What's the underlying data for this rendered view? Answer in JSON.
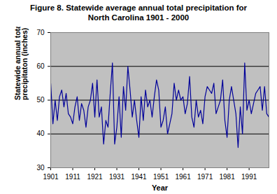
{
  "chart_data": {
    "type": "line",
    "title": "Figure 8. Statewide average annual total precipitation for North Carolina 1901 - 2000",
    "xlabel": "Year",
    "ylabel": "Statewide annual total precipitaton (inches)",
    "x": [
      1901,
      1902,
      1903,
      1904,
      1905,
      1906,
      1907,
      1908,
      1909,
      1910,
      1911,
      1912,
      1913,
      1914,
      1915,
      1916,
      1917,
      1918,
      1919,
      1920,
      1921,
      1922,
      1923,
      1924,
      1925,
      1926,
      1927,
      1928,
      1929,
      1930,
      1931,
      1932,
      1933,
      1934,
      1935,
      1936,
      1937,
      1938,
      1939,
      1940,
      1941,
      1942,
      1943,
      1944,
      1945,
      1946,
      1947,
      1948,
      1949,
      1950,
      1951,
      1952,
      1953,
      1954,
      1955,
      1956,
      1957,
      1958,
      1959,
      1960,
      1961,
      1962,
      1963,
      1964,
      1965,
      1966,
      1967,
      1968,
      1969,
      1970,
      1971,
      1972,
      1973,
      1974,
      1975,
      1976,
      1977,
      1978,
      1979,
      1980,
      1981,
      1982,
      1983,
      1984,
      1985,
      1986,
      1987,
      1988,
      1989,
      1990,
      1991,
      1992,
      1993,
      1994,
      1995,
      1996,
      1997,
      1998,
      1999,
      2000
    ],
    "values": [
      55,
      43,
      50,
      44,
      51,
      53,
      48,
      52,
      46,
      45,
      43,
      48,
      51,
      44,
      49,
      47,
      42,
      48,
      50,
      55,
      45,
      56,
      45,
      48,
      37,
      44,
      42,
      52,
      61,
      37,
      42,
      51,
      39,
      54,
      47,
      60,
      53,
      45,
      50,
      44,
      39,
      51,
      44,
      53,
      48,
      50,
      45,
      51,
      56,
      53,
      42,
      44,
      48,
      40,
      43,
      46,
      55,
      50,
      53,
      50,
      51,
      46,
      49,
      57,
      45,
      42,
      50,
      45,
      47,
      43,
      51,
      54,
      53,
      52,
      55,
      46,
      48,
      50,
      56,
      44,
      39,
      50,
      54,
      50,
      46,
      36,
      48,
      40,
      61,
      47,
      50,
      46,
      49,
      52,
      53,
      54,
      47,
      54,
      46,
      45
    ],
    "color": "#000099",
    "xlim": [
      1901,
      2000
    ],
    "xticks": [
      1901,
      1911,
      1921,
      1931,
      1941,
      1951,
      1961,
      1971,
      1981,
      1991
    ],
    "ylim": [
      30,
      70
    ],
    "yticks": [
      30,
      40,
      50,
      60,
      70
    ],
    "grid": true
  }
}
